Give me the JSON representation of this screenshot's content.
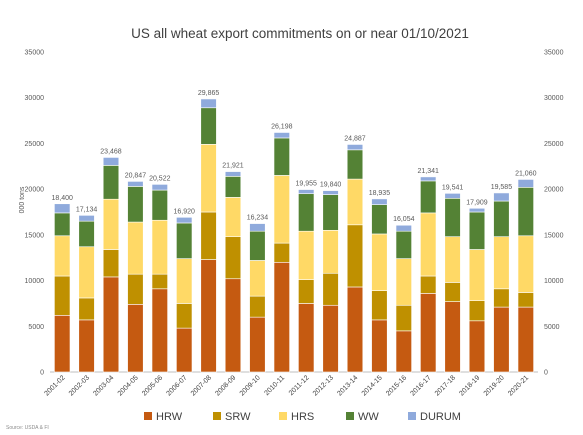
{
  "chart_data": {
    "type": "bar",
    "stacked": true,
    "title": "US all wheat export commitments on or near 01/10/2021",
    "ylabel": "000 tons",
    "ylim": [
      0,
      35000
    ],
    "yticks": [
      "0",
      "5000",
      "10000",
      "15000",
      "20000",
      "25000",
      "30000",
      "35000"
    ],
    "secondary_axis": true,
    "grid": false,
    "legend_position": "bottom",
    "source": "Source: USDA & FI",
    "categories": [
      "2001-02",
      "2002-03",
      "2003-04",
      "2004-05",
      "2005-06",
      "2006-07",
      "2007-08",
      "2008-09",
      "2009-10",
      "2010-11",
      "2011-12",
      "2012-13",
      "2013-14",
      "2014-15",
      "2015-16",
      "2016-17",
      "2017-18",
      "2018-19",
      "2019-20",
      "2020-21"
    ],
    "totals": [
      "18,400",
      "17,134",
      "23,468",
      "20,847",
      "20,522",
      "16,920",
      "29,865",
      "21,921",
      "16,234",
      "26,198",
      "19,955",
      "19,840",
      "24,887",
      "18,935",
      "16,054",
      "21,341",
      "19,541",
      "17,909",
      "19,585",
      "21,060"
    ],
    "series": [
      {
        "name": "HRW",
        "color": "#c55a11",
        "values": [
          6200,
          5700,
          10400,
          7400,
          9100,
          4800,
          12300,
          10200,
          6000,
          12000,
          7500,
          7300,
          9300,
          5700,
          4500,
          8600,
          7700,
          5600,
          7100,
          7100
        ]
      },
      {
        "name": "SRW",
        "color": "#bf9000",
        "values": [
          4300,
          2400,
          3000,
          3300,
          1600,
          2700,
          5200,
          4600,
          2300,
          2100,
          2600,
          3500,
          6800,
          3200,
          2800,
          1900,
          2100,
          2200,
          2000,
          1600
        ]
      },
      {
        "name": "HRS",
        "color": "#ffd966",
        "values": [
          4400,
          5600,
          5500,
          5700,
          5900,
          4900,
          7400,
          4300,
          3900,
          7400,
          5300,
          4700,
          5000,
          6200,
          5100,
          6900,
          5000,
          5600,
          5700,
          6200
        ]
      },
      {
        "name": "WW",
        "color": "#548235",
        "values": [
          2500,
          2800,
          3700,
          3900,
          3300,
          3900,
          4000,
          2300,
          3200,
          4100,
          4100,
          3900,
          3200,
          3200,
          3000,
          3500,
          4200,
          4100,
          3900,
          5300
        ]
      },
      {
        "name": "DURUM",
        "color": "#8faadc",
        "values": [
          1000,
          634,
          868,
          547,
          622,
          620,
          965,
          521,
          834,
          598,
          455,
          440,
          587,
          635,
          654,
          441,
          541,
          409,
          885,
          860
        ]
      }
    ]
  }
}
